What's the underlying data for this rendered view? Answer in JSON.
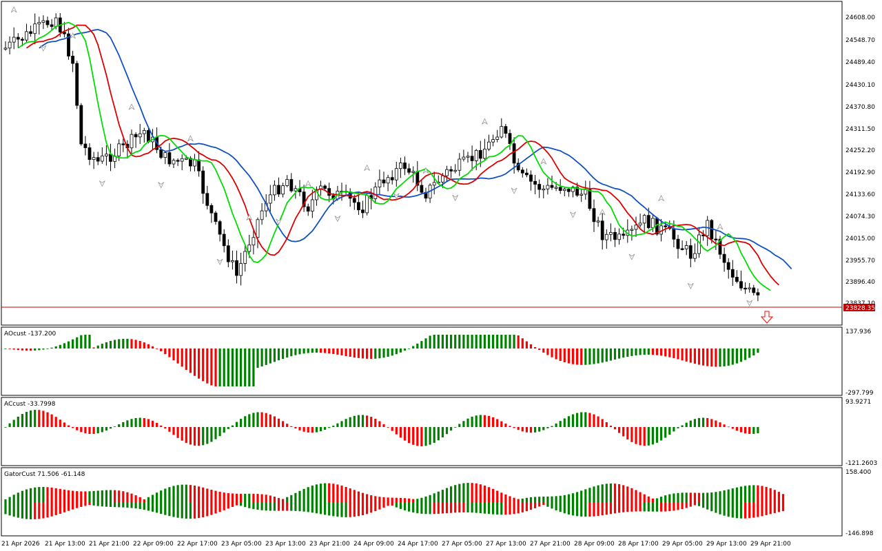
{
  "colors": {
    "background": "#ffffff",
    "frame": "#000000",
    "bull_bar": "#008000",
    "bear_bar": "#ff0000",
    "ma_fast": "#00dd00",
    "ma_mid": "#dd0000",
    "ma_slow": "#1050c0",
    "price_line": "#c00000",
    "fractal": "#999999"
  },
  "main": {
    "price_labels": [
      "24608.00",
      "24548.70",
      "24489.40",
      "24430.10",
      "24370.80",
      "24311.50",
      "24252.20",
      "24192.90",
      "24133.60",
      "24074.30",
      "24015.00",
      "23955.70",
      "23896.40",
      "23837.10"
    ],
    "current_price": "23828.35",
    "arrow_icon": "down-arrow-icon"
  },
  "ao": {
    "label": "AOcust -137.200",
    "max_label": "137.936",
    "min_label": "-297.799"
  },
  "ac": {
    "label": "ACcust -33.7998",
    "max_label": "93.9271",
    "min_label": "-121.2603"
  },
  "gator": {
    "label": "GatorCust 71.506 -61.148",
    "max_label": "158.400",
    "min_label": "-146.898"
  },
  "time_labels": [
    "21 Apr 2026",
    "21 Apr 13:00",
    "21 Apr 21:00",
    "22 Apr 09:00",
    "22 Apr 17:00",
    "23 Apr 05:00",
    "23 Apr 13:00",
    "23 Apr 21:00",
    "24 Apr 09:00",
    "24 Apr 17:00",
    "27 Apr 05:00",
    "27 Apr 13:00",
    "27 Apr 21:00",
    "28 Apr 09:00",
    "28 Apr 17:00",
    "29 Apr 05:00",
    "29 Apr 13:00",
    "29 Apr 21:00"
  ]
}
